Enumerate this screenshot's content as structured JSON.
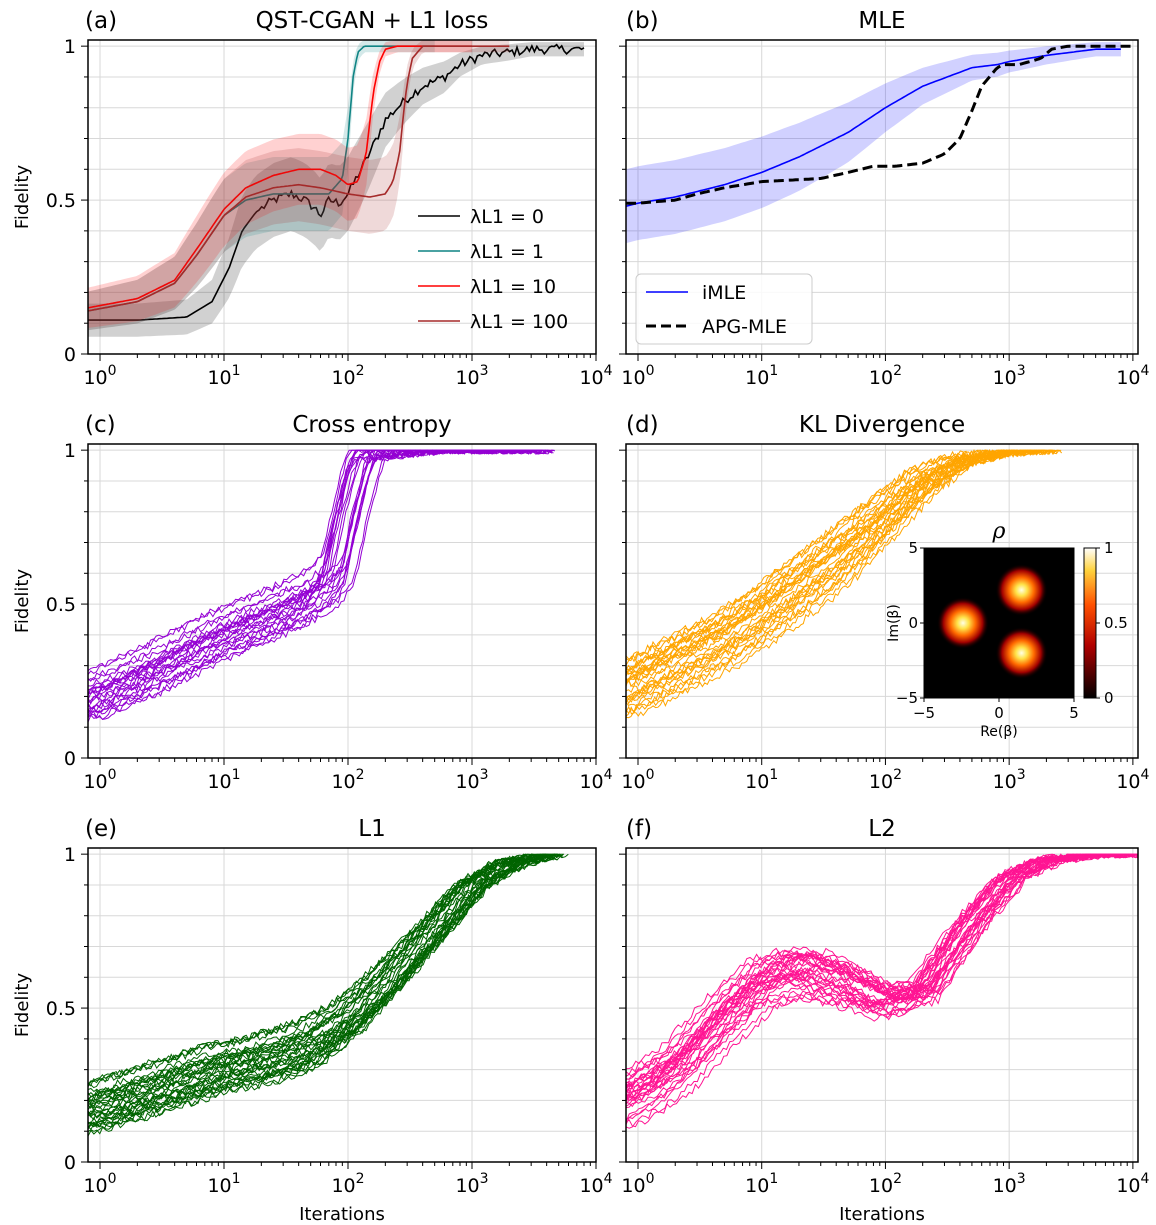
{
  "chart_data": [
    {
      "type": "line",
      "panel_label": "(a)",
      "title": "QST-CGAN + L1 loss",
      "ylabel": "Fidelity",
      "xlabel": "",
      "xscale": "log",
      "xlim": [
        0.8,
        10000
      ],
      "ylim": [
        0,
        1.02
      ],
      "grid": true,
      "legend_position": "center-right",
      "x_tick_labels": [
        "10^0",
        "10^1",
        "10^2",
        "10^3",
        "10^4"
      ],
      "y_tick_labels": [
        "0",
        "0.5",
        "1"
      ],
      "series": [
        {
          "name": "λL1 = 0",
          "color": "#000000",
          "band": true,
          "x": [
            0.8,
            2,
            5,
            8,
            11,
            14,
            18,
            25,
            35,
            45,
            55,
            60,
            70,
            85,
            100,
            120,
            140,
            170,
            200,
            250,
            300,
            400,
            600,
            800,
            1200,
            2000,
            3000,
            5000,
            8000
          ],
          "y": [
            0.11,
            0.11,
            0.12,
            0.17,
            0.28,
            0.4,
            0.46,
            0.5,
            0.52,
            0.5,
            0.47,
            0.45,
            0.5,
            0.49,
            0.52,
            0.58,
            0.63,
            0.7,
            0.76,
            0.8,
            0.83,
            0.87,
            0.9,
            0.94,
            0.97,
            0.98,
            0.99,
            0.99,
            0.99
          ]
        },
        {
          "name": "λL1 = 1",
          "color": "#0f8484",
          "band": true,
          "x": [
            0.8,
            2,
            4,
            6,
            10,
            15,
            25,
            40,
            70,
            90,
            100,
            110,
            120,
            135,
            160,
            250,
            500
          ],
          "y": [
            0.14,
            0.17,
            0.23,
            0.32,
            0.45,
            0.5,
            0.52,
            0.52,
            0.52,
            0.57,
            0.7,
            0.9,
            0.98,
            1.0,
            1.0,
            1.0,
            1.0
          ]
        },
        {
          "name": "λL1 = 10",
          "color": "#ff0000",
          "band": true,
          "x": [
            0.8,
            2,
            4,
            6,
            10,
            15,
            25,
            40,
            60,
            80,
            100,
            120,
            140,
            160,
            180,
            200,
            250,
            400,
            1000
          ],
          "y": [
            0.15,
            0.18,
            0.24,
            0.34,
            0.47,
            0.54,
            0.58,
            0.6,
            0.6,
            0.58,
            0.55,
            0.56,
            0.65,
            0.85,
            0.95,
            0.99,
            1.0,
            1.0,
            1.0
          ]
        },
        {
          "name": "λL1 = 100",
          "color": "#a52a2a",
          "band": true,
          "x": [
            0.8,
            2,
            4,
            6,
            10,
            15,
            25,
            40,
            60,
            100,
            150,
            200,
            230,
            260,
            280,
            300,
            330,
            400,
            600,
            2000
          ],
          "y": [
            0.14,
            0.17,
            0.23,
            0.32,
            0.45,
            0.51,
            0.54,
            0.55,
            0.54,
            0.52,
            0.51,
            0.52,
            0.56,
            0.65,
            0.78,
            0.88,
            0.96,
            1.0,
            1.0,
            1.0
          ]
        }
      ]
    },
    {
      "type": "line",
      "panel_label": "(b)",
      "title": "MLE",
      "ylabel": "",
      "xlabel": "",
      "xscale": "log",
      "xlim": [
        0.8,
        11000
      ],
      "ylim": [
        0,
        1.02
      ],
      "grid": true,
      "legend_position": "lower-left",
      "x_tick_labels": [
        "10^0",
        "10^1",
        "10^2",
        "10^3",
        "10^4"
      ],
      "y_tick_labels": [],
      "series": [
        {
          "name": "iMLE",
          "color": "#0000ff",
          "band": true,
          "x": [
            0.8,
            1,
            2,
            5,
            10,
            20,
            50,
            100,
            200,
            500,
            800,
            1000,
            2000,
            5000,
            8000
          ],
          "y": [
            0.48,
            0.49,
            0.51,
            0.55,
            0.59,
            0.64,
            0.72,
            0.8,
            0.87,
            0.93,
            0.94,
            0.95,
            0.97,
            0.99,
            0.99
          ]
        },
        {
          "name": "APG-MLE",
          "color": "#000000",
          "dashed": true,
          "x": [
            0.8,
            1,
            2,
            3,
            5,
            10,
            30,
            50,
            80,
            120,
            200,
            300,
            400,
            500,
            600,
            800,
            900,
            1200,
            1800,
            2200,
            3000,
            6000,
            10000
          ],
          "y": [
            0.49,
            0.49,
            0.5,
            0.52,
            0.54,
            0.56,
            0.57,
            0.59,
            0.61,
            0.61,
            0.62,
            0.65,
            0.7,
            0.79,
            0.87,
            0.93,
            0.94,
            0.94,
            0.96,
            0.99,
            1.0,
            1.0,
            1.0
          ]
        }
      ]
    },
    {
      "type": "line",
      "panel_label": "(c)",
      "title": "Cross entropy",
      "ylabel": "Fidelity",
      "xlabel": "",
      "xscale": "log",
      "xlim": [
        0.8,
        10000
      ],
      "ylim": [
        0,
        1.02
      ],
      "grid": true,
      "color": "#9400d3",
      "line_count": 24,
      "x_tick_labels": [
        "10^0",
        "10^1",
        "10^2",
        "10^3",
        "10^4"
      ],
      "y_tick_labels": [
        "0",
        "0.5",
        "1"
      ],
      "series": [
        {
          "x": [
            0.8,
            2,
            5,
            10,
            20,
            40,
            60,
            80,
            100,
            130,
            150,
            200,
            400,
            3500
          ],
          "y": [
            0.19,
            0.26,
            0.34,
            0.4,
            0.45,
            0.5,
            0.54,
            0.6,
            0.78,
            0.96,
            1.0,
            1.0,
            1.0,
            1.0
          ]
        }
      ]
    },
    {
      "type": "line",
      "panel_label": "(d)",
      "title": "KL Divergence",
      "ylabel": "",
      "xlabel": "",
      "xscale": "log",
      "xlim": [
        0.8,
        11000
      ],
      "ylim": [
        0,
        1.02
      ],
      "grid": true,
      "color": "#ffa500",
      "line_count": 30,
      "x_tick_labels": [
        "10^0",
        "10^1",
        "10^2",
        "10^3",
        "10^4"
      ],
      "y_tick_labels": [],
      "series": [
        {
          "x": [
            0.8,
            2,
            5,
            10,
            20,
            50,
            100,
            200,
            400,
            800,
            2000
          ],
          "y": [
            0.22,
            0.3,
            0.38,
            0.46,
            0.55,
            0.67,
            0.78,
            0.89,
            0.96,
            0.99,
            1.0
          ]
        }
      ],
      "inset": {
        "type": "heatmap",
        "title": "ρ",
        "xlabel": "Re(β)",
        "ylabel": "Im(β)",
        "x_tick_labels": [
          "−5",
          "0",
          "5"
        ],
        "y_tick_labels": [
          "5",
          "0",
          "−5"
        ],
        "colorbar_tick_labels": [
          "1",
          "0.5",
          "0"
        ],
        "colormap": "hot",
        "peaks": [
          {
            "re": 1.5,
            "im": 2.2
          },
          {
            "re": -2.4,
            "im": 0.0
          },
          {
            "re": 1.5,
            "im": -2.0
          }
        ]
      }
    },
    {
      "type": "line",
      "panel_label": "(e)",
      "title": "L1",
      "ylabel": "Fidelity",
      "xlabel": "Iterations",
      "xscale": "log",
      "xlim": [
        0.8,
        10000
      ],
      "ylim": [
        0,
        1.02
      ],
      "grid": true,
      "color": "#006400",
      "line_count": 34,
      "x_tick_labels": [
        "10^0",
        "10^1",
        "10^2",
        "10^3",
        "10^4"
      ],
      "y_tick_labels": [
        "0",
        "0.5",
        "1"
      ],
      "series": [
        {
          "x": [
            0.8,
            2,
            5,
            10,
            20,
            50,
            100,
            200,
            500,
            1000,
            2000,
            4500
          ],
          "y": [
            0.17,
            0.22,
            0.27,
            0.31,
            0.33,
            0.38,
            0.46,
            0.58,
            0.76,
            0.9,
            0.97,
            1.0
          ]
        }
      ]
    },
    {
      "type": "line",
      "panel_label": "(f)",
      "title": "L2",
      "ylabel": "",
      "xlabel": "Iterations",
      "xscale": "log",
      "xlim": [
        0.8,
        11000
      ],
      "ylim": [
        0,
        1.02
      ],
      "grid": true,
      "color": "#ff1493",
      "line_count": 32,
      "x_tick_labels": [
        "10^0",
        "10^1",
        "10^2",
        "10^3",
        "10^4"
      ],
      "y_tick_labels": [],
      "series": [
        {
          "x": [
            0.8,
            2,
            5,
            10,
            20,
            50,
            100,
            200,
            500,
            1000,
            2000,
            5000,
            10000
          ],
          "y": [
            0.2,
            0.3,
            0.47,
            0.58,
            0.62,
            0.58,
            0.52,
            0.55,
            0.78,
            0.92,
            0.98,
            1.0,
            1.0
          ]
        }
      ]
    }
  ]
}
